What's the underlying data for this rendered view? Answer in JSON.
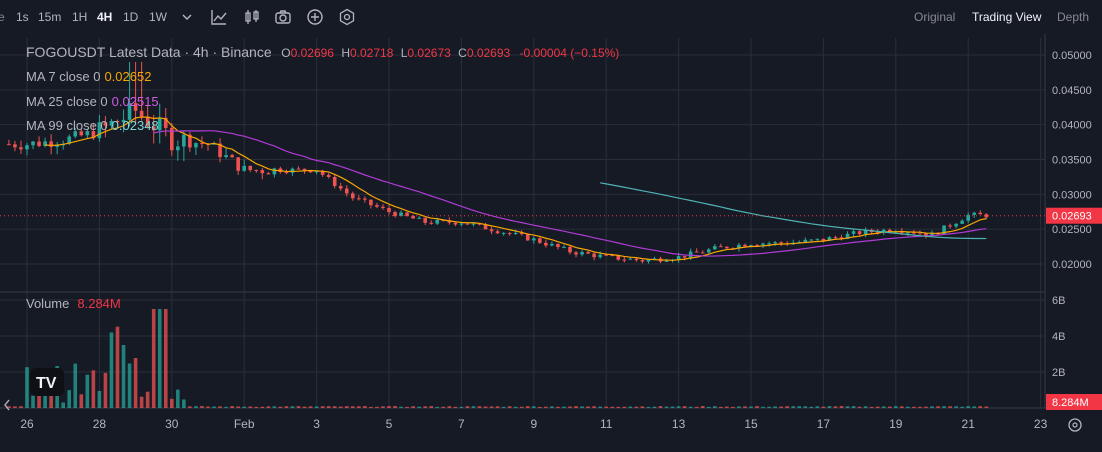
{
  "toolbar": {
    "intervals": [
      {
        "label": "1s",
        "active": false
      },
      {
        "label": "15m",
        "active": false
      },
      {
        "label": "1H",
        "active": false
      },
      {
        "label": "4H",
        "active": true
      },
      {
        "label": "1D",
        "active": false
      },
      {
        "label": "1W",
        "active": false
      }
    ],
    "icons": [
      "chevron-down-icon",
      "indicator-chart-icon",
      "candlestick-icon",
      "camera-icon",
      "plus-circle-icon",
      "settings-icon"
    ],
    "view_tabs": [
      {
        "label": "Original",
        "active": false
      },
      {
        "label": "Trading View",
        "active": true
      },
      {
        "label": "Depth",
        "active": false
      }
    ]
  },
  "legend": {
    "symbol": "FOGOUSDT Latest Data · 4h · Binance",
    "ohlc": [
      {
        "k": "O",
        "v": "0.02696"
      },
      {
        "k": "H",
        "v": "0.02718"
      },
      {
        "k": "L",
        "v": "0.02673"
      },
      {
        "k": "C",
        "v": "0.02693"
      }
    ],
    "change": "-0.00004 (−0.15%)",
    "ma7_label": "MA 7 close 0",
    "ma7_value": "0.02652",
    "ma25_label": "MA 25 close 0",
    "ma25_value": "0.02515",
    "ma99_label": "MA 99 close 0",
    "ma99_value": "0.02348",
    "volume_label": "Volume",
    "volume_value": "8.284M"
  },
  "colors": {
    "background": "#161A25",
    "grid": "#2A2E39",
    "up": "#26A69A",
    "down": "#EF5350",
    "ma7": "#F7A600",
    "ma25": "#B03BD6",
    "ma99": "#4FB3B3",
    "price_tag": "#F23645"
  },
  "chart_data": [
    {
      "type": "candlestick",
      "title": "FOGOUSDT Latest Data · 4h · Binance",
      "x": [
        "26",
        "28",
        "30",
        "Feb",
        "3",
        "5",
        "7",
        "9",
        "11",
        "13",
        "15",
        "17",
        "19",
        "21",
        "23"
      ],
      "ylim": [
        0.0185,
        0.0515
      ],
      "y_ticks": [
        "0.05000",
        "0.04500",
        "0.04000",
        "0.03500",
        "0.03000",
        "0.02500",
        "0.02000"
      ],
      "last_price": "0.02693",
      "series": [
        {
          "name": "MA 7 close 0",
          "last": 0.02652
        },
        {
          "name": "MA 25 close 0",
          "last": 0.02515
        },
        {
          "name": "MA 99 close 0",
          "last": 0.02348
        }
      ],
      "daily_close_approx": [
        [
          26,
          0.0372
        ],
        [
          27,
          0.0378
        ],
        [
          28,
          0.039
        ],
        [
          29,
          0.042
        ],
        [
          30,
          0.038
        ],
        [
          31,
          0.0372
        ],
        [
          32,
          0.0335
        ],
        [
          34,
          0.0335
        ],
        [
          35,
          0.0295
        ],
        [
          36,
          0.0275
        ],
        [
          37,
          0.026
        ],
        [
          38,
          0.026
        ],
        [
          39,
          0.0248
        ],
        [
          40,
          0.0235
        ],
        [
          41,
          0.0218
        ],
        [
          42,
          0.021
        ],
        [
          43,
          0.0205
        ],
        [
          44,
          0.021
        ],
        [
          45,
          0.0222
        ],
        [
          46,
          0.023
        ],
        [
          47,
          0.023
        ],
        [
          48,
          0.0235
        ],
        [
          49,
          0.0245
        ],
        [
          50,
          0.025
        ],
        [
          51,
          0.0242
        ],
        [
          52,
          0.027
        ]
      ],
      "grid": true
    },
    {
      "type": "bar",
      "title": "Volume",
      "last_value": "8.284M",
      "y_ticks": [
        "6B",
        "4B",
        "2B"
      ],
      "ylim": [
        0,
        6.5
      ],
      "unit": "B"
    }
  ]
}
